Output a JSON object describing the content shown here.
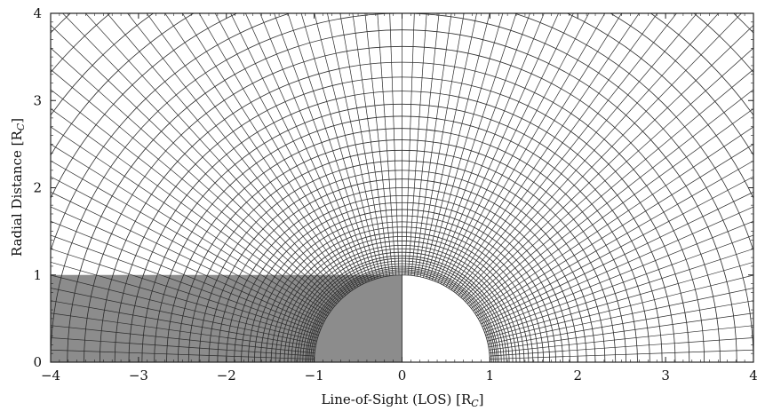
{
  "chart_data": {
    "type": "polar-grid",
    "xlabel": "Line-of-Sight (LOS) [R",
    "xlabel_sub": "C",
    "xlabel_tail": "]",
    "ylabel": "Radial Distance [R",
    "ylabel_sub": "C",
    "ylabel_tail": "]",
    "xlim": [
      -4,
      4
    ],
    "ylim": [
      0,
      4
    ],
    "xticks": [
      -4,
      -3,
      -2,
      -1,
      0,
      1,
      2,
      3,
      4
    ],
    "yticks": [
      0,
      1,
      2,
      3,
      4
    ],
    "xtick_labels": [
      "−4",
      "−3",
      "−2",
      "−1",
      "0",
      "1",
      "2",
      "3",
      "4"
    ],
    "ytick_labels": [
      "0",
      "1",
      "2",
      "3",
      "4"
    ],
    "occulter_radius": 1,
    "shaded_region": {
      "x_from": -4,
      "x_to": 0,
      "y_from": 0,
      "y_to": 1
    },
    "grid": {
      "radial_rays_count": 90,
      "ring_radii": [
        1.0,
        1.02,
        1.04,
        1.06,
        1.08,
        1.1,
        1.13,
        1.16,
        1.19,
        1.22,
        1.26,
        1.3,
        1.34,
        1.39,
        1.44,
        1.49,
        1.55,
        1.61,
        1.68,
        1.75,
        1.83,
        1.91,
        2.0,
        2.1,
        2.2,
        2.31,
        2.43,
        2.55,
        2.68,
        2.82,
        2.96,
        3.11,
        3.27,
        3.44,
        3.62,
        3.81,
        4.0,
        4.2,
        4.42,
        4.65,
        4.9,
        5.2,
        5.5
      ]
    },
    "colors": {
      "line": "#2b2b2b",
      "shade": "#8c8c8c",
      "occulter_fill": "#ffffff"
    }
  }
}
